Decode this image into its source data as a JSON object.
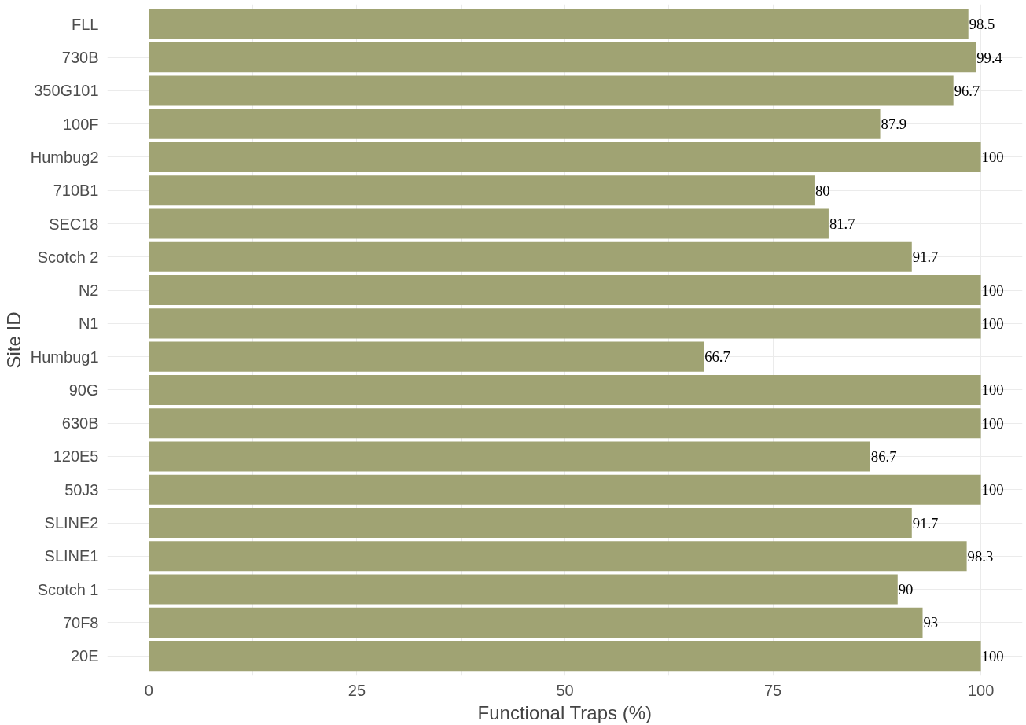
{
  "chart_data": {
    "type": "bar",
    "orientation": "horizontal",
    "xlabel": "Functional Traps (%)",
    "ylabel": "Site ID",
    "categories": [
      "FLL",
      "730B",
      "350G101",
      "100F",
      "Humbug2",
      "710B1",
      "SEC18",
      "Scotch 2",
      "N2",
      "N1",
      "Humbug1",
      "90G",
      "630B",
      "120E5",
      "50J3",
      "SLINE2",
      "SLINE1",
      "Scotch 1",
      "70F8",
      "20E"
    ],
    "values": [
      98.5,
      99.4,
      96.7,
      87.9,
      100,
      80,
      81.7,
      91.7,
      100,
      100,
      66.7,
      100,
      100,
      86.7,
      100,
      91.7,
      98.3,
      90,
      93,
      100
    ],
    "color": "#a0a373",
    "data_labels": true,
    "xlim": [
      -5,
      105
    ],
    "xticks": [
      0,
      {
        "value": 12.5,
        "label": null
      },
      25,
      {
        "value": 37.5,
        "label": null
      },
      50,
      {
        "value": 62.5,
        "label": null
      },
      75,
      {
        "value": 87.5,
        "label": null
      },
      100
    ],
    "grid": true
  }
}
